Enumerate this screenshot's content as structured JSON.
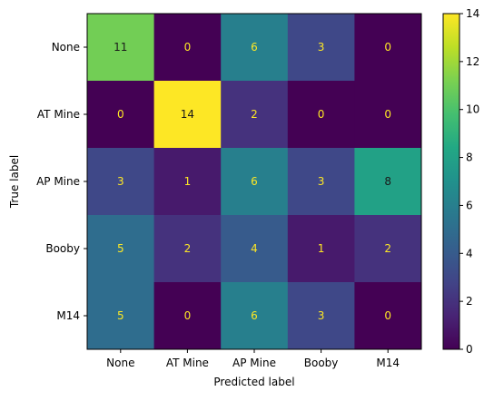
{
  "chart_data": {
    "type": "heatmap",
    "title": "",
    "xlabel": "Predicted label",
    "ylabel": "True label",
    "x_categories": [
      "None",
      "AT Mine",
      "AP Mine",
      "Booby",
      "M14"
    ],
    "y_categories": [
      "None",
      "AT Mine",
      "AP Mine",
      "Booby",
      "M14"
    ],
    "matrix": [
      [
        11,
        0,
        6,
        3,
        0
      ],
      [
        0,
        14,
        2,
        0,
        0
      ],
      [
        3,
        1,
        6,
        3,
        8
      ],
      [
        5,
        2,
        4,
        1,
        2
      ],
      [
        5,
        0,
        6,
        3,
        0
      ]
    ],
    "colorbar": {
      "min": 0,
      "max": 14,
      "ticks": [
        0,
        2,
        4,
        6,
        8,
        10,
        12,
        14
      ]
    },
    "colormap": "viridis",
    "text_color_dark_cells": "#fde725",
    "text_color_light_cells": "#1a1a1a"
  }
}
